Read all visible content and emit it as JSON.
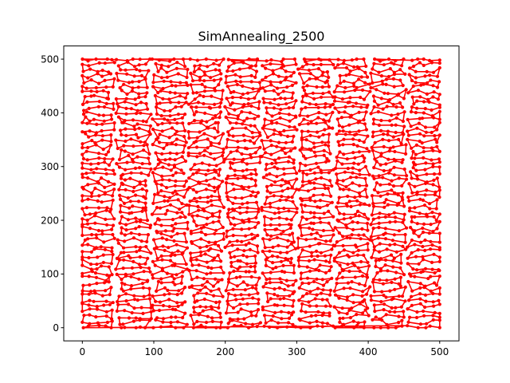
{
  "chart_data": {
    "type": "line",
    "title": "SimAnnealing_2500",
    "xlabel": "",
    "ylabel": "",
    "xlim": [
      -26,
      527
    ],
    "ylim": [
      -24.5,
      524.5
    ],
    "xticks": [
      0,
      100,
      200,
      300,
      400,
      500
    ],
    "yticks": [
      0,
      100,
      200,
      300,
      400,
      500
    ],
    "grid": false,
    "legend": "none",
    "series": [
      {
        "color": "#ff0000",
        "marker": "circle",
        "point_count": 2500,
        "x_range": [
          0,
          500
        ],
        "y_range": [
          0,
          500
        ],
        "description_of_path": "closed tour through 2500 cities"
      }
    ]
  }
}
